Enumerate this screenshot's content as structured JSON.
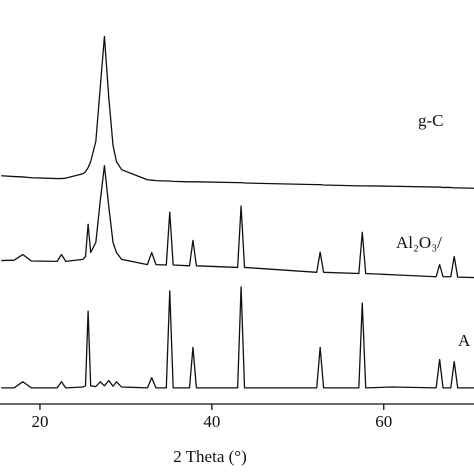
{
  "chart_data": {
    "type": "line",
    "x_label": "2 Theta (°)",
    "xlim": [
      15.35,
      70.5
    ],
    "xticks": [
      20,
      40,
      60
    ],
    "ylim": [
      0,
      100
    ],
    "x": [
      15.5,
      17,
      18,
      19,
      22,
      22.5,
      23,
      25,
      25.3,
      25.6,
      25.9,
      26.5,
      27,
      27.5,
      28,
      28.5,
      28.9,
      29.5,
      32.5,
      33,
      33.5,
      34.7,
      35.1,
      35.5,
      37.4,
      37.8,
      38.2,
      43,
      43.4,
      43.8,
      52.2,
      52.6,
      53,
      57.1,
      57.5,
      57.9,
      61,
      66.1,
      66.5,
      66.9,
      67.8,
      68.2,
      68.6,
      70.5
    ],
    "series": [
      {
        "name": "g-C",
        "color": "#111111",
        "values": [
          56.5,
          56.3,
          56.2,
          56,
          55.8,
          55.8,
          55.9,
          57,
          57.5,
          58.5,
          60,
          65,
          78,
          91,
          76,
          64,
          60,
          58,
          55.5,
          55.4,
          55.3,
          55.2,
          55.2,
          55.1,
          55,
          55,
          55,
          54.8,
          54.8,
          54.7,
          54.3,
          54.3,
          54.2,
          54,
          54,
          54,
          53.9,
          53.7,
          53.7,
          53.6,
          53.6,
          53.5,
          53.5,
          53.4
        ]
      },
      {
        "name": "Al₂O₃/",
        "color": "#111111",
        "values": [
          35.5,
          35.6,
          37,
          35.4,
          35.3,
          37,
          35.3,
          35.8,
          36.5,
          44.5,
          37.5,
          40,
          50,
          59,
          49,
          40,
          37.5,
          35.8,
          34.5,
          37.5,
          34.5,
          34.4,
          47.5,
          34.4,
          34.2,
          40.5,
          34.2,
          33.8,
          49,
          33.8,
          32.6,
          37.6,
          32.6,
          32.3,
          42.5,
          32.3,
          32,
          31.5,
          34.5,
          31.5,
          31.5,
          36.5,
          31.4,
          31.3
        ]
      },
      {
        "name": "A",
        "color": "#111111",
        "values": [
          4,
          4,
          5.5,
          4,
          4,
          5.5,
          4,
          4.2,
          4.5,
          23,
          4.5,
          4.3,
          5.5,
          4.5,
          5.8,
          4.4,
          5.5,
          4.2,
          4,
          6.5,
          4,
          4,
          28,
          4,
          4,
          14,
          4,
          4,
          29,
          4,
          4,
          14,
          4,
          4,
          25,
          4,
          4.2,
          4,
          11,
          4,
          4,
          10.5,
          4,
          4
        ]
      }
    ]
  }
}
